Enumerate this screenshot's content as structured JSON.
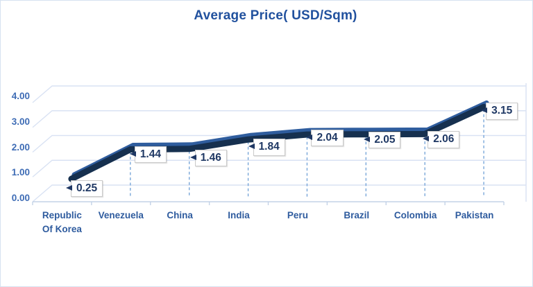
{
  "chart_data": {
    "type": "line",
    "style": "3d-line",
    "title": "Average Price( USD/Sqm)",
    "categories": [
      "Republic Of Korea",
      "Venezuela",
      "China",
      "India",
      "Peru",
      "Brazil",
      "Colombia",
      "Pakistan"
    ],
    "values": [
      0.25,
      1.44,
      1.46,
      1.84,
      2.04,
      2.05,
      2.06,
      3.15
    ],
    "data_labels": [
      "0.25",
      "1.44",
      "1.46",
      "1.84",
      "2.04",
      "2.05",
      "2.06",
      "3.15"
    ],
    "ytick_labels": [
      "0.00",
      "1.00",
      "2.00",
      "3.00",
      "4.00"
    ],
    "ylim": [
      0,
      4
    ],
    "ytick_step": 1,
    "grid": true,
    "legend": "none",
    "drop_lines": true,
    "colors": {
      "title": "#21519e",
      "ribbon_front": "#16304f",
      "ribbon_top": "#2f5d9e",
      "gridline": "#d9e2f3",
      "axis_line": "#c3d2e7",
      "drop_line": "#6fa0d6",
      "data_label_text": "#1f3864",
      "y_axis_text": "#3e6cb5",
      "x_axis_text": "#2e5b9e",
      "frame_border": "#d6e2f0"
    }
  }
}
